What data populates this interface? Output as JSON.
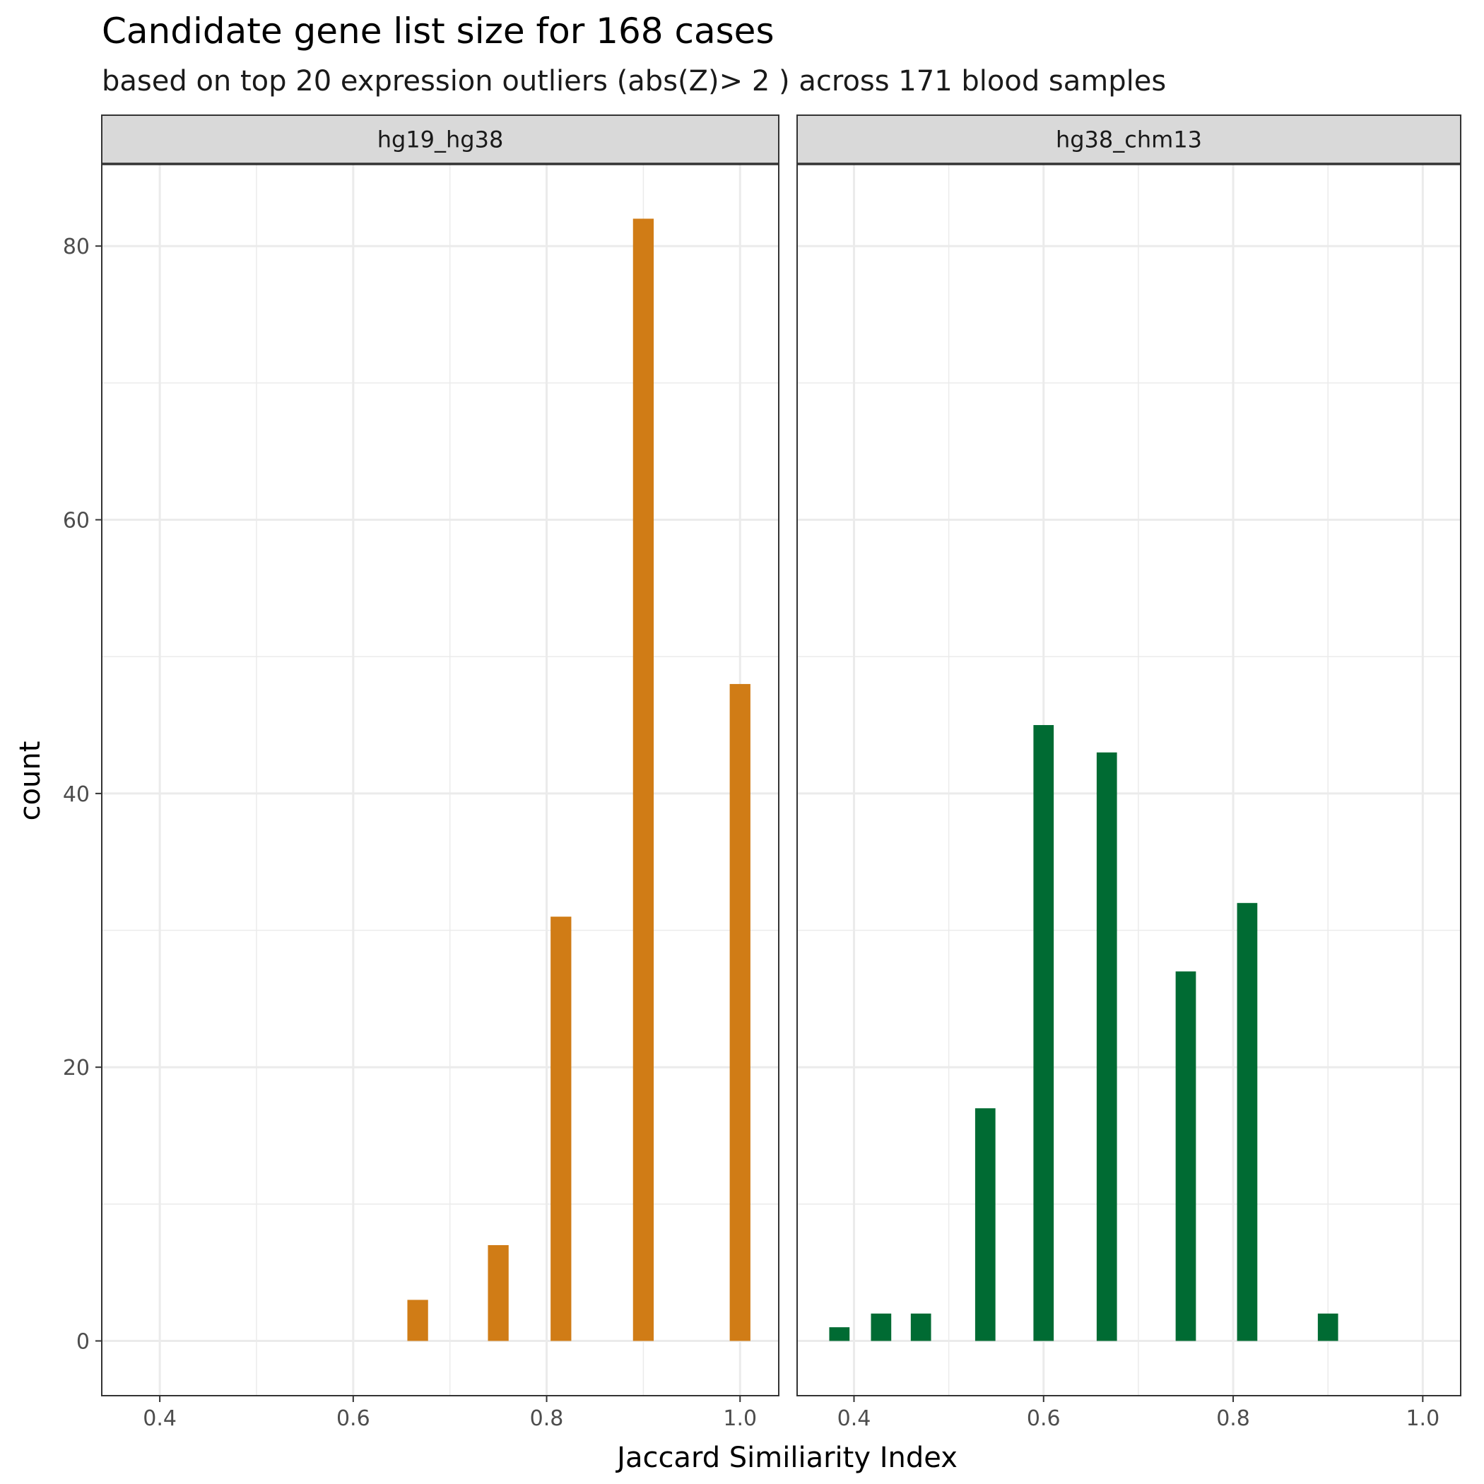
{
  "chart_data": {
    "type": "bar",
    "title": "Candidate gene list size for 168 cases",
    "subtitle": "based on top 20 expression outliers (abs(Z)> 2 ) across 171 blood samples",
    "xlabel": "Jaccard Similiarity Index",
    "ylabel": "count",
    "xlim": [
      0.34,
      1.04
    ],
    "ylim": [
      -4,
      86
    ],
    "x_ticks": [
      0.4,
      0.6,
      0.8,
      1.0
    ],
    "x_tick_labels": [
      "0.4",
      "0.6",
      "0.8",
      "1.0"
    ],
    "y_ticks": [
      0,
      20,
      40,
      60,
      80
    ],
    "y_tick_labels": [
      "0",
      "20",
      "40",
      "60",
      "80"
    ],
    "grid": true,
    "bar_width": 0.0214,
    "panels": [
      {
        "name": "hg19_hg38",
        "color": "#D07C16",
        "x": [
          0.6667,
          0.75,
          0.8148,
          0.9,
          1.0
        ],
        "values": [
          3,
          7,
          31,
          82,
          48
        ]
      },
      {
        "name": "hg38_chm13",
        "color": "#006B33",
        "x": [
          0.3846,
          0.4286,
          0.4706,
          0.5385,
          0.6,
          0.6667,
          0.75,
          0.8148,
          0.9
        ],
        "values": [
          1,
          2,
          2,
          17,
          45,
          43,
          27,
          32,
          2
        ]
      }
    ]
  }
}
